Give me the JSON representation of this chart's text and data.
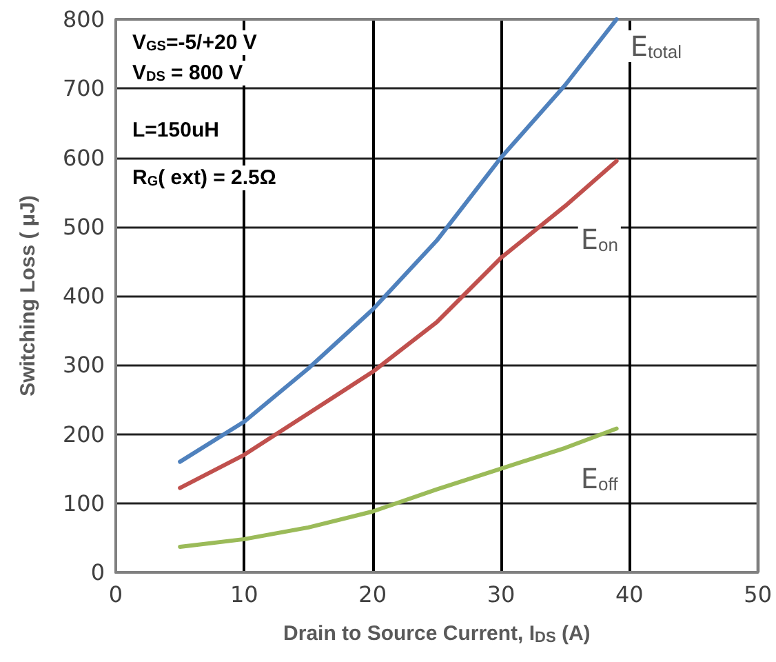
{
  "chart_data": {
    "type": "line",
    "xlabel": "Drain to Source Current, I$_{DS}$ (A)",
    "ylabel": "Switching Loss ( μJ)",
    "x": [
      5,
      10,
      15,
      20,
      25,
      30,
      35,
      39
    ],
    "series": [
      {
        "name": "E$_{total}$",
        "color": "#4f81bd",
        "values": [
          160,
          218,
          295,
          380,
          480,
          600,
          705,
          800
        ]
      },
      {
        "name": "E$_{on}$",
        "color": "#c0504d",
        "values": [
          122,
          170,
          230,
          290,
          362,
          455,
          530,
          595
        ]
      },
      {
        "name": "E$_{off}$",
        "color": "#9bbb59",
        "values": [
          37,
          48,
          65,
          88,
          120,
          150,
          180,
          208
        ]
      }
    ],
    "annotations": [
      "V$_{GS}$=-5/+20 V",
      "V$_{DS}$ = 800 V",
      "L=150uH",
      "R$_{G}$( ext) = 2.5Ω"
    ],
    "xlim": [
      0,
      50
    ],
    "xticks": [
      0,
      10,
      20,
      30,
      40,
      50
    ],
    "ylim": [
      0,
      800
    ],
    "yticks": [
      0,
      100,
      200,
      300,
      400,
      500,
      600,
      700,
      800
    ],
    "grid": true,
    "legend": false,
    "marker": "none",
    "line_style": "solid"
  }
}
